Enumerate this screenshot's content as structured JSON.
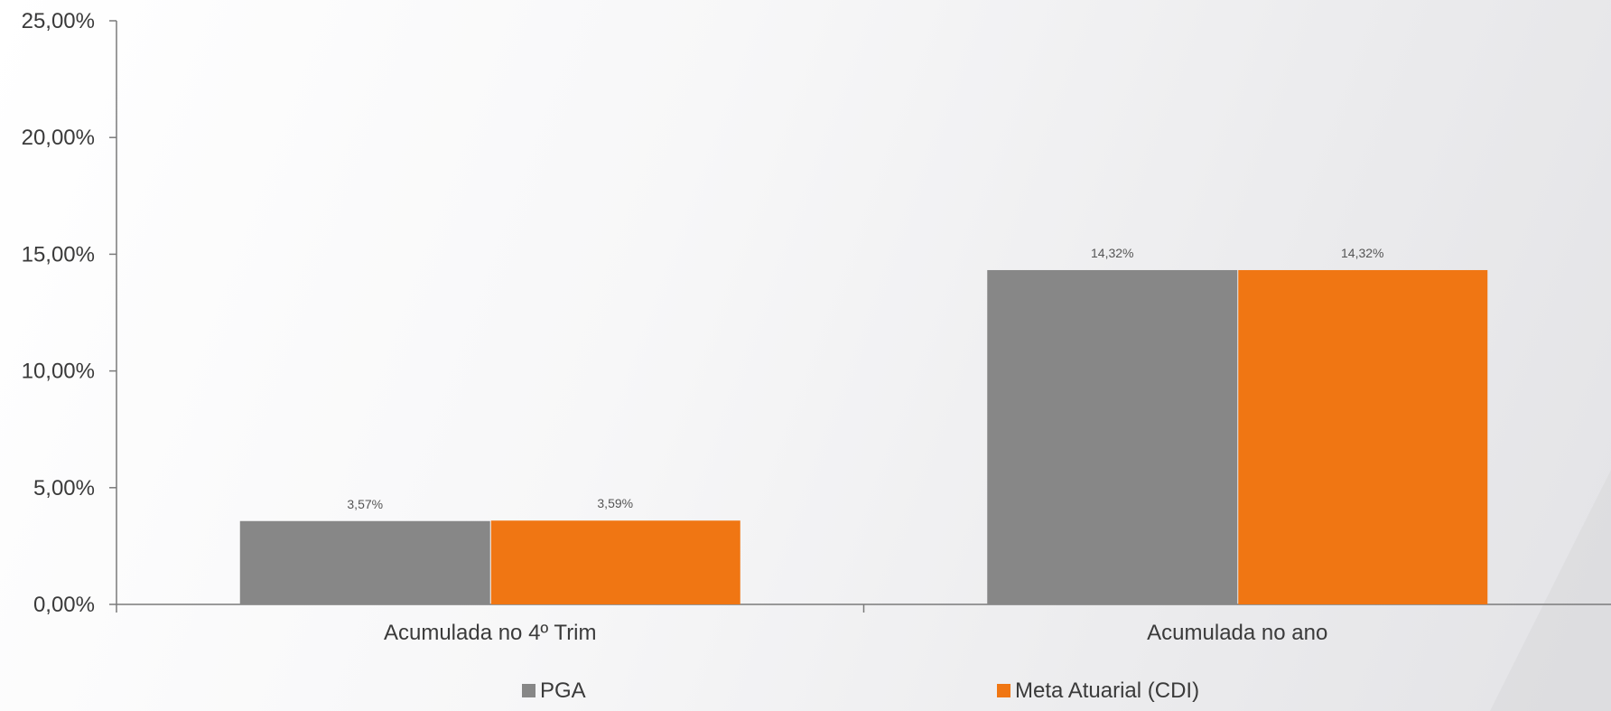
{
  "chart_data": {
    "type": "bar",
    "title": "",
    "xlabel": "",
    "ylabel": "",
    "ylim": [
      0,
      25
    ],
    "yticks": [
      "0,00%",
      "5,00%",
      "10,00%",
      "15,00%",
      "20,00%",
      "25,00%"
    ],
    "ytick_values": [
      0,
      5,
      10,
      15,
      20,
      25
    ],
    "categories": [
      "Acumulada no 4º Trim",
      "Acumulada no ano"
    ],
    "series": [
      {
        "name": "PGA",
        "values": [
          3.57,
          14.32
        ],
        "labels": [
          "3,57%",
          "14,32%"
        ],
        "color": "#878787"
      },
      {
        "name": "Meta Atuarial (CDI)",
        "values": [
          3.59,
          14.32
        ],
        "labels": [
          "3,59%",
          "14,32%"
        ],
        "color": "#f07613"
      }
    ],
    "grid": false,
    "legend_position": "bottom"
  }
}
